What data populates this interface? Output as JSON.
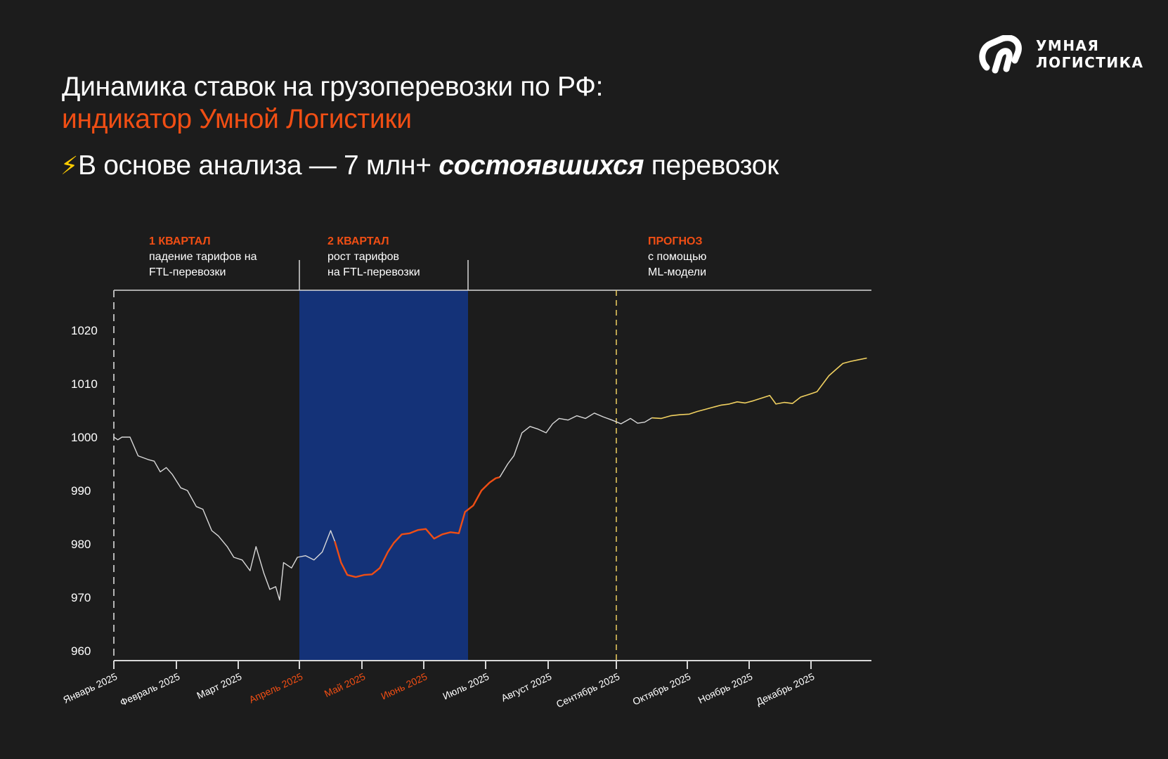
{
  "header": {
    "title_line1": "Динамика ставок на грузоперевозки по РФ:",
    "title_line2": "индикатор Умной Логистики",
    "subtitle_icon": "lightning-icon",
    "subtitle_prefix": "В основе анализа — 7 млн+ ",
    "subtitle_bold": "состоявшихся",
    "subtitle_suffix": " перевозок"
  },
  "logo": {
    "icon": "umnaya-logistika-logo-icon",
    "line1": "УМНАЯ",
    "line2": "ЛОГИСТИКА"
  },
  "colors": {
    "background": "#1c1c1c",
    "accent": "#f04e14",
    "highlight_band": "#143278",
    "history_line": "#d9d9d9",
    "forecast_line": "#f0d060"
  },
  "chart_data": {
    "type": "line",
    "title": "",
    "xlabel": "",
    "ylabel": "",
    "ylim": [
      958,
      1027
    ],
    "yticks": [
      960,
      970,
      980,
      990,
      1000,
      1010,
      1020
    ],
    "months": [
      "Январь 2025",
      "Февраль 2025",
      "Март 2025",
      "Апрель 2025",
      "Май 2025",
      "Июнь 2025",
      "Июль 2025",
      "Август 2025",
      "Сентябрь 2025",
      "Октябрь 2025",
      "Ноябрь 2025",
      "Декабрь 2025"
    ],
    "highlighted_months": [
      "Апрель 2025",
      "Май 2025",
      "Июнь 2025"
    ],
    "periods": [
      {
        "heading": "1 КВАРТАЛ",
        "line1": "падение тарифов на",
        "line2": "FTL-перевозки"
      },
      {
        "heading": "2 КВАРТАЛ",
        "line1": "рост тарифов",
        "line2": "на FTL-перевозки"
      },
      {
        "heading": "ПРОГНОЗ",
        "line1": "с помощью",
        "line2": "ML-модели"
      }
    ],
    "highlight_band": {
      "from": "2025-04-01",
      "to": "2025-06-30"
    },
    "forecast_start": "2025-09-01",
    "series": [
      {
        "segment": "history",
        "points": [
          [
            "2025-01-01",
            1000
          ],
          [
            "2025-01-03",
            999.5
          ],
          [
            "2025-01-05",
            1000
          ],
          [
            "2025-01-09",
            1000
          ],
          [
            "2025-01-13",
            996.5
          ],
          [
            "2025-01-18",
            995.8
          ],
          [
            "2025-01-21",
            995.5
          ],
          [
            "2025-01-24",
            993.5
          ],
          [
            "2025-01-27",
            994.3
          ],
          [
            "2025-01-30",
            993
          ],
          [
            "2025-02-03",
            990.5
          ],
          [
            "2025-02-06",
            990
          ],
          [
            "2025-02-10",
            987
          ],
          [
            "2025-02-13",
            986.5
          ],
          [
            "2025-02-17",
            982.5
          ],
          [
            "2025-02-20",
            981.5
          ],
          [
            "2025-02-24",
            979.5
          ],
          [
            "2025-02-27",
            977.5
          ],
          [
            "2025-03-03",
            977
          ],
          [
            "2025-03-07",
            975
          ],
          [
            "2025-03-10",
            979.5
          ],
          [
            "2025-03-14",
            974.5
          ],
          [
            "2025-03-17",
            971.5
          ],
          [
            "2025-03-20",
            972
          ],
          [
            "2025-03-22",
            969.5
          ],
          [
            "2025-03-24",
            976.5
          ],
          [
            "2025-03-28",
            975.5
          ],
          [
            "2025-03-31",
            977.5
          ],
          [
            "2025-04-04",
            977.8
          ],
          [
            "2025-04-08",
            977
          ],
          [
            "2025-04-12",
            978.5
          ],
          [
            "2025-04-16",
            982.5
          ],
          [
            "2025-04-18",
            980.5
          ]
        ]
      },
      {
        "segment": "q2",
        "points": [
          [
            "2025-04-18",
            980.5
          ],
          [
            "2025-04-21",
            976.5
          ],
          [
            "2025-04-24",
            974.2
          ],
          [
            "2025-04-28",
            973.8
          ],
          [
            "2025-05-02",
            974.2
          ],
          [
            "2025-05-06",
            974.3
          ],
          [
            "2025-05-10",
            975.5
          ],
          [
            "2025-05-14",
            978.5
          ],
          [
            "2025-05-17",
            980.2
          ],
          [
            "2025-05-21",
            981.8
          ],
          [
            "2025-05-25",
            982
          ],
          [
            "2025-05-29",
            982.6
          ],
          [
            "2025-06-02",
            982.8
          ],
          [
            "2025-06-06",
            981
          ],
          [
            "2025-06-10",
            981.8
          ],
          [
            "2025-06-14",
            982.2
          ],
          [
            "2025-06-18",
            982
          ],
          [
            "2025-06-21",
            986
          ],
          [
            "2025-06-25",
            987.2
          ],
          [
            "2025-06-29",
            990
          ],
          [
            "2025-07-03",
            991.5
          ],
          [
            "2025-07-06",
            992.3
          ],
          [
            "2025-07-08",
            992.5
          ]
        ]
      },
      {
        "segment": "history",
        "points": [
          [
            "2025-07-08",
            992.5
          ],
          [
            "2025-07-12",
            995
          ],
          [
            "2025-07-15",
            996.5
          ],
          [
            "2025-07-19",
            1000.8
          ],
          [
            "2025-07-23",
            1002
          ],
          [
            "2025-07-27",
            1001.5
          ],
          [
            "2025-07-31",
            1000.8
          ],
          [
            "2025-08-03",
            1002.5
          ],
          [
            "2025-08-06",
            1003.5
          ],
          [
            "2025-08-10",
            1003.2
          ],
          [
            "2025-08-14",
            1004
          ],
          [
            "2025-08-18",
            1003.5
          ],
          [
            "2025-08-22",
            1004.5
          ],
          [
            "2025-08-26",
            1003.8
          ],
          [
            "2025-08-30",
            1003.2
          ],
          [
            "2025-09-03",
            1002.5
          ],
          [
            "2025-09-07",
            1003.5
          ],
          [
            "2025-09-10",
            1002.6
          ],
          [
            "2025-09-13",
            1002.8
          ],
          [
            "2025-09-16",
            1003.6
          ]
        ]
      },
      {
        "segment": "forecast",
        "points": [
          [
            "2025-09-16",
            1003.6
          ],
          [
            "2025-09-20",
            1003.5
          ],
          [
            "2025-09-24",
            1004
          ],
          [
            "2025-09-28",
            1004.2
          ],
          [
            "2025-10-02",
            1004.3
          ],
          [
            "2025-10-06",
            1004.8
          ],
          [
            "2025-10-10",
            1005.2
          ],
          [
            "2025-10-14",
            1005.6
          ],
          [
            "2025-10-18",
            1006
          ],
          [
            "2025-10-22",
            1006.2
          ],
          [
            "2025-10-26",
            1006.6
          ],
          [
            "2025-10-30",
            1006.4
          ],
          [
            "2025-11-03",
            1006.8
          ],
          [
            "2025-11-07",
            1007.3
          ],
          [
            "2025-11-11",
            1007.8
          ],
          [
            "2025-11-14",
            1006.2
          ],
          [
            "2025-11-18",
            1006.5
          ],
          [
            "2025-11-22",
            1006.3
          ],
          [
            "2025-11-26",
            1007.5
          ],
          [
            "2025-11-30",
            1008
          ],
          [
            "2025-12-04",
            1008.5
          ],
          [
            "2025-12-07",
            1010
          ],
          [
            "2025-12-10",
            1011.5
          ],
          [
            "2025-12-13",
            1012.5
          ],
          [
            "2025-12-17",
            1013.8
          ],
          [
            "2025-12-21",
            1014.2
          ],
          [
            "2025-12-25",
            1014.5
          ],
          [
            "2025-12-29",
            1014.8
          ]
        ]
      }
    ]
  }
}
